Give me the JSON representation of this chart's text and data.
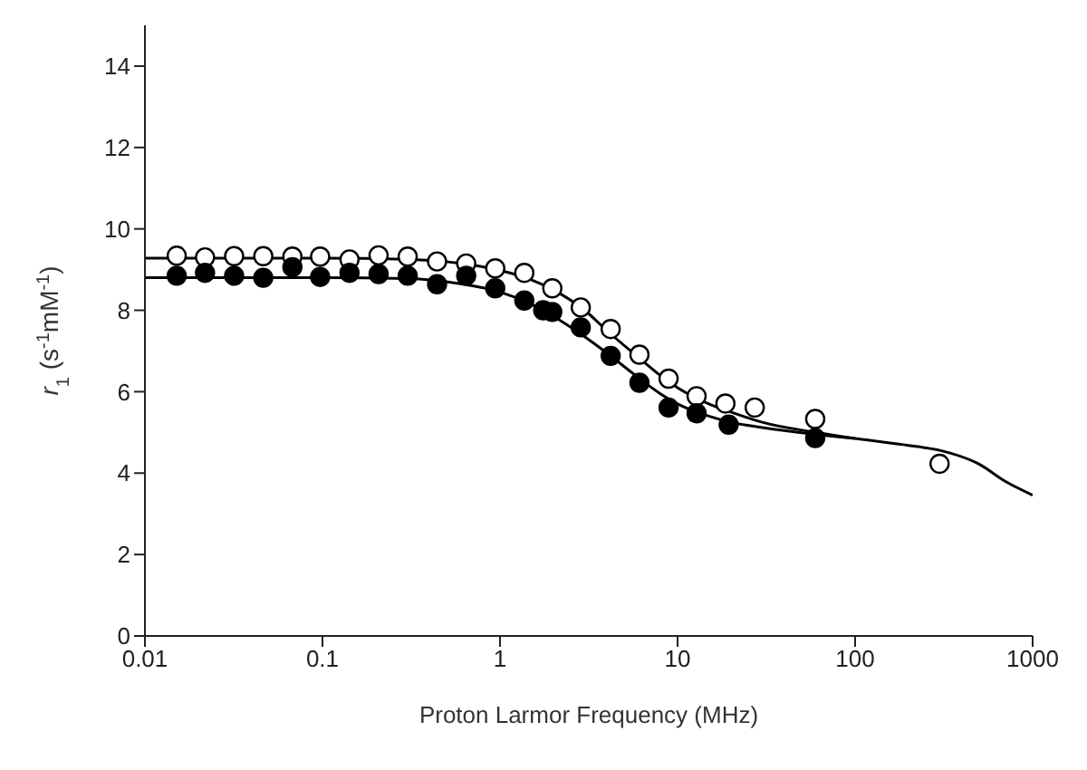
{
  "chart_data": {
    "type": "scatter",
    "xlabel": "Proton Larmor Frequency (MHz)",
    "ylabel": "r$_{1}$ (s$^{-1}$mM$^{-1}$)",
    "log": "x",
    "xlim": [
      0.01,
      1000
    ],
    "xticks": [
      0.01,
      0.1,
      1,
      10,
      100,
      1000
    ],
    "ylim": [
      0,
      15
    ],
    "yticks": [
      0,
      2,
      4,
      6,
      8,
      10,
      12,
      14
    ],
    "line_style": "solid",
    "series": [
      {
        "type": "line",
        "color": "#000000",
        "x": [
          0.01,
          0.1,
          0.3,
          0.6,
          1,
          1.5,
          2,
          3,
          4,
          6,
          8,
          10,
          15,
          20,
          30,
          60,
          100,
          200,
          300,
          500,
          700,
          1000
        ],
        "values": [
          9.28,
          9.28,
          9.25,
          9.15,
          8.98,
          8.75,
          8.5,
          8.0,
          7.5,
          6.85,
          6.4,
          6.1,
          5.7,
          5.5,
          5.25,
          5.0,
          4.85,
          4.68,
          4.56,
          4.22,
          3.8,
          3.46
        ]
      },
      {
        "type": "line",
        "color": "#000000",
        "x": [
          0.01,
          0.1,
          0.3,
          0.6,
          1,
          1.5,
          2,
          3,
          4,
          6,
          8,
          10,
          15,
          20,
          30,
          60,
          100
        ],
        "values": [
          8.8,
          8.8,
          8.78,
          8.65,
          8.45,
          8.15,
          7.85,
          7.35,
          6.95,
          6.35,
          5.95,
          5.7,
          5.4,
          5.25,
          5.12,
          4.95,
          4.85
        ]
      },
      {
        "marker": "circle",
        "color": "#ffffff",
        "x": [
          0.0151,
          0.0218,
          0.0318,
          0.0464,
          0.0677,
          0.097,
          0.142,
          0.207,
          0.302,
          0.442,
          0.645,
          0.94,
          1.37,
          1.97,
          2.85,
          4.2,
          6.1,
          8.9,
          12.8,
          18.6,
          27.2,
          59.6,
          299
        ],
        "values": [
          9.34,
          9.3,
          9.33,
          9.33,
          9.32,
          9.32,
          9.25,
          9.35,
          9.32,
          9.2,
          9.15,
          9.03,
          8.92,
          8.54,
          8.07,
          7.54,
          6.91,
          6.32,
          5.89,
          5.71,
          5.61,
          5.33,
          4.23
        ]
      },
      {
        "marker": "circle",
        "color": "#000000",
        "x": [
          0.0151,
          0.0218,
          0.0318,
          0.0464,
          0.0677,
          0.097,
          0.142,
          0.207,
          0.302,
          0.442,
          0.645,
          0.94,
          1.37,
          1.75,
          1.97,
          2.85,
          4.2,
          6.1,
          8.9,
          12.8,
          19.4,
          59.6
        ],
        "values": [
          8.85,
          8.92,
          8.85,
          8.8,
          9.06,
          8.82,
          8.92,
          8.89,
          8.85,
          8.64,
          8.85,
          8.54,
          8.24,
          8.0,
          7.96,
          7.58,
          6.88,
          6.22,
          5.61,
          5.47,
          5.19,
          4.86
        ]
      }
    ]
  }
}
